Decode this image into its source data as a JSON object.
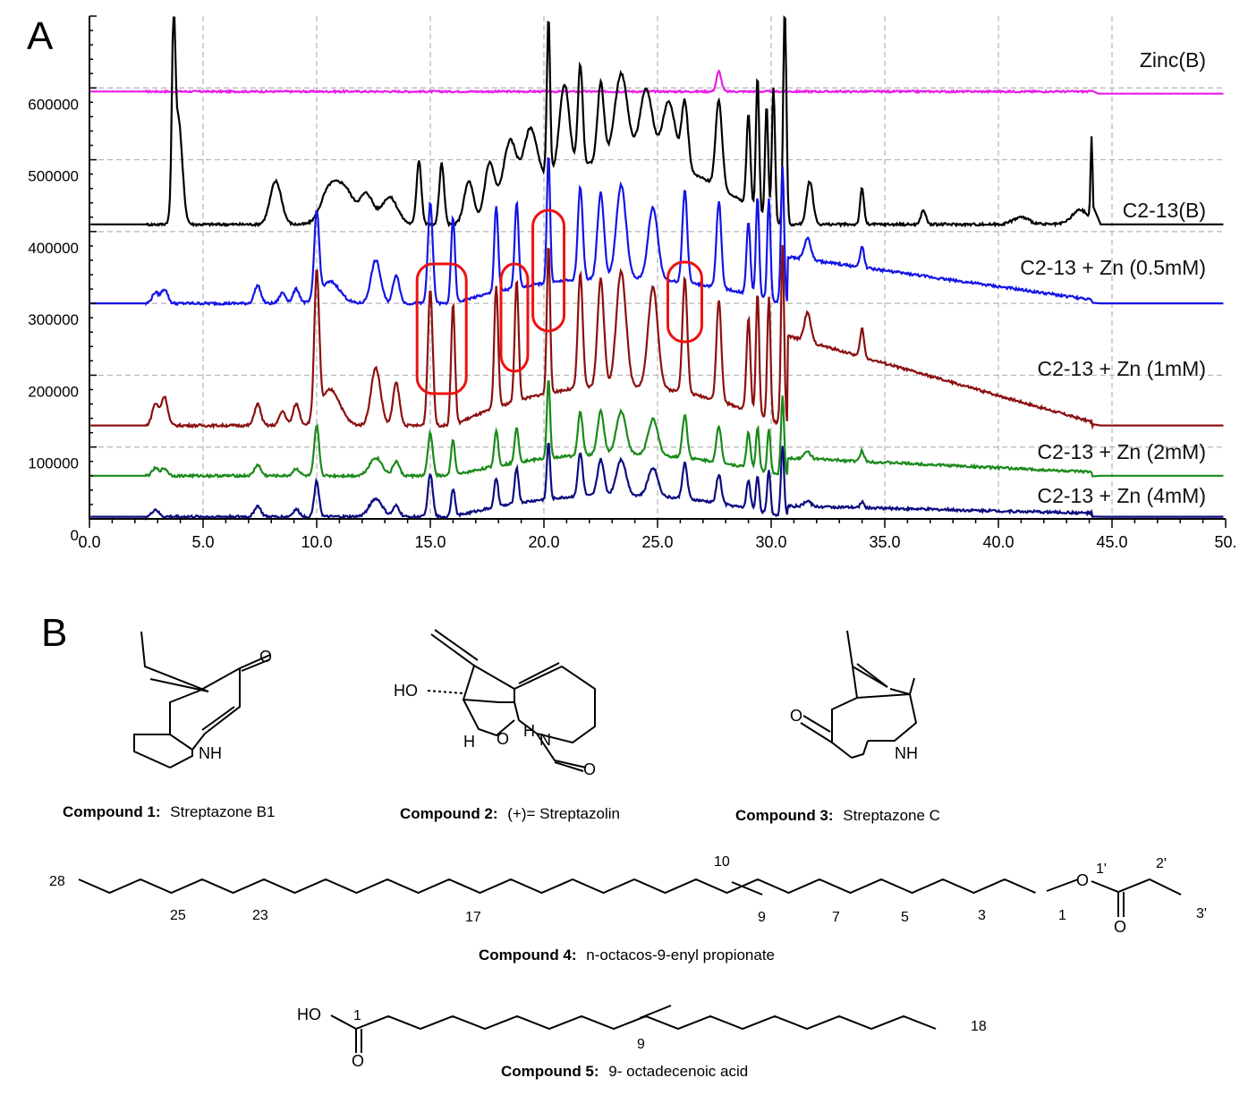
{
  "chart_data": {
    "type": "line",
    "panel_label": "A",
    "xlim": [
      0,
      50
    ],
    "x_ticks": [
      "0.0",
      "5.0",
      "10.0",
      "15.0",
      "20.0",
      "25.0",
      "30.0",
      "35.0",
      "40.0",
      "45.0",
      "50."
    ],
    "ylim": [
      0,
      700000
    ],
    "y_ticks": [
      "0",
      "100000",
      "200000",
      "300000",
      "400000",
      "500000",
      "600000"
    ],
    "grid": true,
    "series": [
      {
        "name": "Zinc(B)",
        "color": "#e81ce8",
        "baseline": 595000,
        "endLevel": 592000,
        "peaks": [
          [
            27.7,
            28000,
            0.15
          ]
        ],
        "noise": 2500,
        "start": 2.5,
        "end": 44.1
      },
      {
        "name": "C2-13(B)",
        "color": "#000000",
        "baseline": 410000,
        "endLevel": 410000,
        "peaks": [
          [
            3.7,
            230000,
            0.1
          ],
          [
            3.9,
            150000,
            0.25
          ],
          [
            8.2,
            60000,
            0.35
          ],
          [
            10.5,
            40000,
            0.5
          ],
          [
            11.2,
            50000,
            0.6
          ],
          [
            12.2,
            40000,
            0.4
          ],
          [
            13.2,
            38000,
            0.5
          ],
          [
            14.5,
            90000,
            0.15
          ],
          [
            15.5,
            85000,
            0.15
          ],
          [
            16.7,
            60000,
            0.3
          ],
          [
            17.6,
            70000,
            0.3
          ],
          [
            18.5,
            80000,
            0.4
          ],
          [
            19.4,
            80000,
            0.4
          ],
          [
            20.2,
            220000,
            0.1
          ],
          [
            20.9,
            120000,
            0.3
          ],
          [
            21.6,
            140000,
            0.15
          ],
          [
            22.5,
            110000,
            0.2
          ],
          [
            23.4,
            120000,
            0.4
          ],
          [
            24.5,
            100000,
            0.4
          ],
          [
            25.5,
            90000,
            0.4
          ],
          [
            26.2,
            95000,
            0.2
          ],
          [
            27.7,
            120000,
            0.2
          ],
          [
            29.0,
            130000,
            0.12
          ],
          [
            29.4,
            190000,
            0.1
          ],
          [
            29.8,
            160000,
            0.1
          ],
          [
            30.1,
            190000,
            0.1
          ],
          [
            30.6,
            300000,
            0.1
          ],
          [
            31.7,
            60000,
            0.2
          ],
          [
            34.0,
            50000,
            0.12
          ],
          [
            36.7,
            20000,
            0.15
          ],
          [
            41.0,
            10000,
            0.5
          ],
          [
            43.6,
            20000,
            0.5
          ],
          [
            44.1,
            115000,
            0.06
          ]
        ],
        "broad": [
          [
            17,
            30,
            0.9
          ]
        ],
        "start": 2.5,
        "end": 44.2
      },
      {
        "name": "C2-13 + Zn (0.5mM)",
        "color": "#1414e6",
        "baseline": 300000,
        "endLevel": 300000,
        "peaks": [
          [
            2.9,
            15000,
            0.2
          ],
          [
            3.3,
            20000,
            0.2
          ],
          [
            7.4,
            25000,
            0.2
          ],
          [
            8.5,
            15000,
            0.2
          ],
          [
            9.1,
            20000,
            0.2
          ],
          [
            10.0,
            120000,
            0.15
          ],
          [
            10.6,
            30000,
            0.6
          ],
          [
            12.6,
            60000,
            0.3
          ],
          [
            13.5,
            40000,
            0.2
          ],
          [
            15.0,
            140000,
            0.15
          ],
          [
            16.0,
            120000,
            0.12
          ],
          [
            17.9,
            120000,
            0.12
          ],
          [
            18.8,
            120000,
            0.12
          ],
          [
            20.2,
            180000,
            0.1
          ],
          [
            21.6,
            130000,
            0.15
          ],
          [
            22.5,
            120000,
            0.2
          ],
          [
            23.4,
            130000,
            0.3
          ],
          [
            24.8,
            100000,
            0.3
          ],
          [
            26.2,
            130000,
            0.15
          ],
          [
            27.7,
            120000,
            0.15
          ],
          [
            29.0,
            100000,
            0.12
          ],
          [
            29.4,
            140000,
            0.1
          ],
          [
            29.9,
            140000,
            0.1
          ],
          [
            30.5,
            190000,
            0.1
          ],
          [
            31.6,
            30000,
            0.2
          ],
          [
            34.0,
            30000,
            0.12
          ]
        ],
        "broad": [
          [
            16,
            30.5,
            0.35
          ]
        ],
        "tail": [
          30.7,
          44.1,
          60000
        ],
        "start": 2.5,
        "end": 44.2
      },
      {
        "name": "C2-13 + Zn (1mM)",
        "color": "#8b1010",
        "baseline": 130000,
        "endLevel": 130000,
        "peaks": [
          [
            2.9,
            30000,
            0.2
          ],
          [
            3.3,
            40000,
            0.2
          ],
          [
            7.4,
            30000,
            0.2
          ],
          [
            8.5,
            20000,
            0.2
          ],
          [
            9.1,
            30000,
            0.2
          ],
          [
            10.0,
            200000,
            0.15
          ],
          [
            10.6,
            50000,
            0.6
          ],
          [
            12.6,
            80000,
            0.3
          ],
          [
            13.5,
            60000,
            0.2
          ],
          [
            15.0,
            190000,
            0.15
          ],
          [
            16.0,
            170000,
            0.12
          ],
          [
            17.9,
            170000,
            0.12
          ],
          [
            18.8,
            170000,
            0.12
          ],
          [
            20.2,
            210000,
            0.1
          ],
          [
            21.6,
            160000,
            0.15
          ],
          [
            22.5,
            150000,
            0.2
          ],
          [
            23.4,
            160000,
            0.3
          ],
          [
            24.8,
            140000,
            0.3
          ],
          [
            26.2,
            160000,
            0.15
          ],
          [
            27.7,
            140000,
            0.15
          ],
          [
            29.0,
            130000,
            0.12
          ],
          [
            29.4,
            170000,
            0.1
          ],
          [
            29.9,
            170000,
            0.1
          ],
          [
            30.5,
            250000,
            0.1
          ],
          [
            31.6,
            40000,
            0.2
          ],
          [
            34.0,
            40000,
            0.12
          ]
        ],
        "broad": [
          [
            16,
            30.5,
            0.55
          ]
        ],
        "tail": [
          30.7,
          44.1,
          120000
        ],
        "start": 2.5,
        "end": 44.2
      },
      {
        "name": "C2-13 + Zn (2mM)",
        "color": "#1a8a1a",
        "baseline": 60000,
        "endLevel": 60000,
        "peaks": [
          [
            2.9,
            10000,
            0.2
          ],
          [
            3.3,
            10000,
            0.2
          ],
          [
            7.4,
            15000,
            0.2
          ],
          [
            9.1,
            10000,
            0.2
          ],
          [
            10.0,
            70000,
            0.15
          ],
          [
            12.6,
            25000,
            0.4
          ],
          [
            13.5,
            20000,
            0.2
          ],
          [
            15.0,
            60000,
            0.15
          ],
          [
            16.0,
            50000,
            0.12
          ],
          [
            17.9,
            50000,
            0.12
          ],
          [
            18.8,
            50000,
            0.12
          ],
          [
            20.2,
            110000,
            0.1
          ],
          [
            21.6,
            60000,
            0.15
          ],
          [
            22.5,
            60000,
            0.2
          ],
          [
            23.4,
            60000,
            0.3
          ],
          [
            24.8,
            50000,
            0.3
          ],
          [
            26.2,
            60000,
            0.15
          ],
          [
            27.7,
            50000,
            0.15
          ],
          [
            29.0,
            50000,
            0.12
          ],
          [
            29.4,
            60000,
            0.1
          ],
          [
            29.9,
            60000,
            0.1
          ],
          [
            30.5,
            110000,
            0.1
          ],
          [
            31.6,
            10000,
            0.2
          ],
          [
            34.0,
            15000,
            0.12
          ]
        ],
        "broad": [
          [
            16,
            30.5,
            0.3
          ]
        ],
        "tail": [
          30.7,
          44.1,
          20000
        ],
        "start": 2.5,
        "end": 44.2
      },
      {
        "name": "C2-13 + Zn (4mM)",
        "color": "#0c0c80",
        "baseline": 3000,
        "endLevel": 3000,
        "peaks": [
          [
            2.9,
            10000,
            0.2
          ],
          [
            7.4,
            15000,
            0.2
          ],
          [
            9.1,
            10000,
            0.2
          ],
          [
            10.0,
            50000,
            0.15
          ],
          [
            12.6,
            25000,
            0.4
          ],
          [
            13.5,
            15000,
            0.2
          ],
          [
            15.0,
            60000,
            0.15
          ],
          [
            16.0,
            40000,
            0.12
          ],
          [
            17.9,
            40000,
            0.12
          ],
          [
            18.8,
            50000,
            0.12
          ],
          [
            20.2,
            80000,
            0.1
          ],
          [
            21.6,
            60000,
            0.15
          ],
          [
            22.5,
            50000,
            0.2
          ],
          [
            23.4,
            50000,
            0.3
          ],
          [
            24.8,
            40000,
            0.3
          ],
          [
            26.2,
            50000,
            0.15
          ],
          [
            27.7,
            40000,
            0.15
          ],
          [
            29.0,
            40000,
            0.12
          ],
          [
            29.4,
            50000,
            0.1
          ],
          [
            29.9,
            60000,
            0.1
          ],
          [
            30.5,
            100000,
            0.1
          ],
          [
            31.6,
            8000,
            0.2
          ],
          [
            34.0,
            8000,
            0.12
          ]
        ],
        "broad": [
          [
            16,
            30.5,
            0.3
          ]
        ],
        "tail": [
          30.7,
          44.1,
          10000
        ],
        "start": 2.5,
        "end": 44.2
      }
    ],
    "highlighted_peaks_x": [
      15.5,
      18.7,
      20.2,
      26.2
    ]
  },
  "panelB": {
    "label": "B",
    "compounds": [
      {
        "bold": "Compound 1:",
        "name": "Streptazone B1"
      },
      {
        "bold": "Compound 2:",
        "name": "(+)= Streptazolin"
      },
      {
        "bold": "Compound 3:",
        "name": "Streptazone C"
      },
      {
        "bold": "Compound 4:",
        "name": "n-octacos-9-enyl propionate"
      },
      {
        "bold": "Compound 5:",
        "name": "9- octadecenoic acid"
      }
    ],
    "atoms": {
      "O": "O",
      "NH": "NH",
      "N": "N",
      "H": "H",
      "HO": "HO",
      "HOdots": "HO",
      "c4": [
        "28",
        "25",
        "23",
        "17",
        "10",
        "9",
        "7",
        "5",
        "3",
        "1",
        "1'",
        "2'",
        "3'"
      ],
      "c5": [
        "1",
        "9",
        "18"
      ]
    }
  }
}
